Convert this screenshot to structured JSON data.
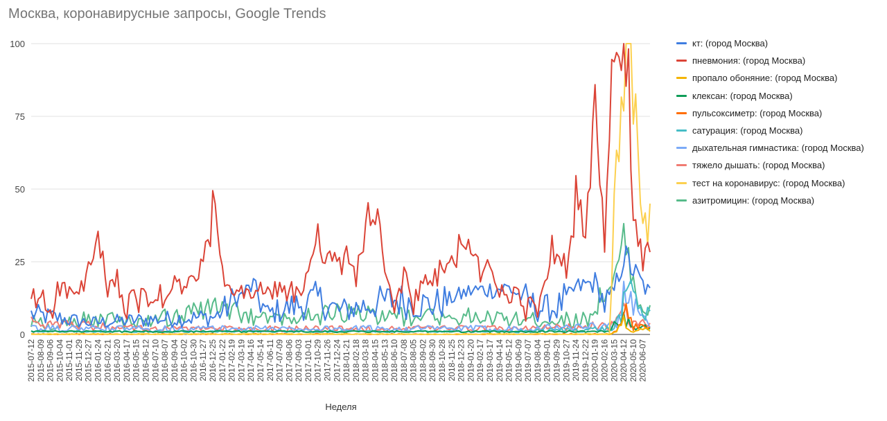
{
  "chart_data": {
    "type": "line",
    "title": "Москва, коронавирусные запросы, Google Trends",
    "xlabel": "Неделя",
    "ylabel": "",
    "ylim": [
      0,
      100
    ],
    "yticks": [
      0,
      25,
      50,
      75,
      100
    ],
    "grid": true,
    "legend_position": "right",
    "x_start": "2015-07-12",
    "x_end": "2020-06-28",
    "x_tick_labels": [
      "2015-07-12",
      "2015-08-09",
      "2015-09-06",
      "2015-10-04",
      "2015-11-01",
      "2015-11-29",
      "2015-12-27",
      "2016-01-24",
      "2016-02-21",
      "2016-03-20",
      "2016-04-17",
      "2016-05-15",
      "2016-06-12",
      "2016-07-10",
      "2016-08-07",
      "2016-09-04",
      "2016-10-02",
      "2016-10-30",
      "2016-11-27",
      "2016-12-25",
      "2017-01-22",
      "2017-02-19",
      "2017-03-19",
      "2017-04-16",
      "2017-05-14",
      "2017-06-11",
      "2017-07-09",
      "2017-08-06",
      "2017-09-03",
      "2017-10-01",
      "2017-10-29",
      "2017-11-26",
      "2017-12-24",
      "2018-01-21",
      "2018-02-18",
      "2018-03-18",
      "2018-04-15",
      "2018-05-13",
      "2018-06-10",
      "2018-07-08",
      "2018-08-05",
      "2018-09-02",
      "2018-09-30",
      "2018-10-28",
      "2018-11-25",
      "2018-12-23",
      "2019-01-20",
      "2019-02-17",
      "2019-03-17",
      "2019-04-14",
      "2019-05-12",
      "2019-06-09",
      "2019-07-07",
      "2019-08-04",
      "2019-09-01",
      "2019-09-29",
      "2019-10-27",
      "2019-11-24",
      "2019-12-22",
      "2020-01-19",
      "2020-02-16",
      "2020-03-15",
      "2020-04-12",
      "2020-05-10",
      "2020-06-07"
    ],
    "series": [
      {
        "name": "кт: (город Москва)",
        "color": "#3f7de0",
        "points": [
          [
            "2015-07-12",
            7
          ],
          [
            "2016-01-01",
            4
          ],
          [
            "2016-06-01",
            5
          ],
          [
            "2017-01-01",
            6
          ],
          [
            "2017-04-23",
            17
          ],
          [
            "2017-06-01",
            7
          ],
          [
            "2017-10-29",
            12
          ],
          [
            "2018-01-01",
            8
          ],
          [
            "2018-06-10",
            12
          ],
          [
            "2018-10-01",
            10
          ],
          [
            "2019-01-20",
            15
          ],
          [
            "2019-05-12",
            16
          ],
          [
            "2019-08-01",
            9
          ],
          [
            "2019-09-29",
            9
          ],
          [
            "2019-11-24",
            16
          ],
          [
            "2020-01-19",
            18
          ],
          [
            "2020-02-16",
            10
          ],
          [
            "2020-03-15",
            15
          ],
          [
            "2020-04-12",
            27
          ],
          [
            "2020-05-10",
            22
          ],
          [
            "2020-06-07",
            17
          ],
          [
            "2020-06-28",
            14
          ]
        ]
      },
      {
        "name": "пневмония: (город Москва)",
        "color": "#db4437",
        "points": [
          [
            "2015-07-12",
            10
          ],
          [
            "2015-08-09",
            13
          ],
          [
            "2015-09-06",
            9
          ],
          [
            "2015-10-04",
            17
          ],
          [
            "2015-11-01",
            14
          ],
          [
            "2015-11-29",
            14
          ],
          [
            "2015-12-27",
            21
          ],
          [
            "2016-01-24",
            33
          ],
          [
            "2016-02-21",
            14
          ],
          [
            "2016-03-20",
            19
          ],
          [
            "2016-04-17",
            8
          ],
          [
            "2016-05-15",
            12
          ],
          [
            "2016-06-12",
            11
          ],
          [
            "2016-07-10",
            13
          ],
          [
            "2016-08-07",
            10
          ],
          [
            "2016-09-04",
            18
          ],
          [
            "2016-10-02",
            15
          ],
          [
            "2016-10-30",
            20
          ],
          [
            "2016-11-27",
            22
          ],
          [
            "2016-12-25",
            44
          ],
          [
            "2017-01-22",
            20
          ],
          [
            "2017-02-19",
            14
          ],
          [
            "2017-03-19",
            14
          ],
          [
            "2017-04-16",
            14
          ],
          [
            "2017-05-14",
            16
          ],
          [
            "2017-06-11",
            13
          ],
          [
            "2017-07-09",
            17
          ],
          [
            "2017-08-06",
            12
          ],
          [
            "2017-09-03",
            12
          ],
          [
            "2017-10-01",
            23
          ],
          [
            "2017-10-29",
            35
          ],
          [
            "2017-11-26",
            28
          ],
          [
            "2017-12-24",
            22
          ],
          [
            "2018-01-21",
            26
          ],
          [
            "2018-02-18",
            21
          ],
          [
            "2018-03-18",
            36
          ],
          [
            "2018-04-15",
            44
          ],
          [
            "2018-05-13",
            20
          ],
          [
            "2018-06-10",
            10
          ],
          [
            "2018-07-08",
            20
          ],
          [
            "2018-08-05",
            12
          ],
          [
            "2018-09-02",
            17
          ],
          [
            "2018-09-30",
            18
          ],
          [
            "2018-10-28",
            22
          ],
          [
            "2018-11-25",
            24
          ],
          [
            "2018-12-23",
            34
          ],
          [
            "2019-01-20",
            27
          ],
          [
            "2019-02-17",
            22
          ],
          [
            "2019-03-17",
            22
          ],
          [
            "2019-04-14",
            16
          ],
          [
            "2019-05-12",
            13
          ],
          [
            "2019-06-09",
            10
          ],
          [
            "2019-07-07",
            10
          ],
          [
            "2019-08-04",
            10
          ],
          [
            "2019-09-01",
            22
          ],
          [
            "2019-09-29",
            34
          ],
          [
            "2019-10-27",
            24
          ],
          [
            "2019-11-24",
            47
          ],
          [
            "2019-12-22",
            34
          ],
          [
            "2020-01-19",
            71
          ],
          [
            "2020-02-16",
            30
          ],
          [
            "2020-03-15",
            100
          ],
          [
            "2020-03-29",
            82
          ],
          [
            "2020-04-12",
            96
          ],
          [
            "2020-04-26",
            82
          ],
          [
            "2020-05-10",
            50
          ],
          [
            "2020-05-24",
            30
          ],
          [
            "2020-06-07",
            24
          ],
          [
            "2020-06-28",
            27
          ]
        ]
      },
      {
        "name": "пропало обоняние: (город Москва)",
        "color": "#f4b400",
        "points": [
          [
            "2015-07-12",
            0
          ],
          [
            "2020-03-08",
            0
          ],
          [
            "2020-03-29",
            2
          ],
          [
            "2020-04-12",
            5
          ],
          [
            "2020-04-26",
            3
          ],
          [
            "2020-05-10",
            1
          ],
          [
            "2020-06-28",
            2
          ]
        ]
      },
      {
        "name": "клексан: (город Москва)",
        "color": "#0f9d58",
        "points": [
          [
            "2015-07-12",
            1
          ],
          [
            "2016-06-01",
            1
          ],
          [
            "2017-06-01",
            1
          ],
          [
            "2018-06-01",
            1
          ],
          [
            "2019-06-01",
            1
          ],
          [
            "2020-02-16",
            1
          ],
          [
            "2020-04-12",
            6
          ],
          [
            "2020-05-10",
            3
          ],
          [
            "2020-06-28",
            2
          ]
        ]
      },
      {
        "name": "пульсоксиметр: (город Москва)",
        "color": "#ff6d01",
        "points": [
          [
            "2015-07-12",
            0
          ],
          [
            "2020-03-08",
            0
          ],
          [
            "2020-04-05",
            3
          ],
          [
            "2020-04-19",
            7
          ],
          [
            "2020-05-10",
            3
          ],
          [
            "2020-06-28",
            2
          ]
        ]
      },
      {
        "name": "сатурация: (город Москва)",
        "color": "#46bdc6",
        "points": [
          [
            "2015-07-12",
            1
          ],
          [
            "2016-06-01",
            1
          ],
          [
            "2017-06-01",
            1
          ],
          [
            "2018-06-01",
            1
          ],
          [
            "2019-06-01",
            1
          ],
          [
            "2020-03-15",
            2
          ],
          [
            "2020-04-12",
            10
          ],
          [
            "2020-05-03",
            17
          ],
          [
            "2020-06-07",
            7
          ],
          [
            "2020-06-28",
            8
          ]
        ]
      },
      {
        "name": "дыхательная гимнастика: (город Москва)",
        "color": "#7baaf7",
        "points": [
          [
            "2015-07-12",
            2
          ],
          [
            "2016-06-01",
            2
          ],
          [
            "2017-06-01",
            2
          ],
          [
            "2018-06-01",
            2
          ],
          [
            "2019-06-01",
            2
          ],
          [
            "2020-03-15",
            3
          ],
          [
            "2020-04-12",
            12
          ],
          [
            "2020-05-03",
            10
          ],
          [
            "2020-06-07",
            5
          ],
          [
            "2020-06-28",
            4
          ]
        ]
      },
      {
        "name": "тяжело дышать: (город Москва)",
        "color": "#f07b72",
        "points": [
          [
            "2015-07-12",
            4
          ],
          [
            "2016-06-01",
            2
          ],
          [
            "2017-06-01",
            2
          ],
          [
            "2018-06-01",
            2
          ],
          [
            "2019-06-01",
            2
          ],
          [
            "2020-03-15",
            3
          ],
          [
            "2020-04-12",
            7
          ],
          [
            "2020-05-10",
            4
          ],
          [
            "2020-06-28",
            3
          ]
        ]
      },
      {
        "name": "тест на коронавирус: (город Москва)",
        "color": "#fcd04f",
        "points": [
          [
            "2015-07-12",
            0
          ],
          [
            "2020-03-01",
            0
          ],
          [
            "2020-03-15",
            45
          ],
          [
            "2020-03-22",
            72
          ],
          [
            "2020-03-29",
            68
          ],
          [
            "2020-04-12",
            88
          ],
          [
            "2020-04-26",
            85
          ],
          [
            "2020-05-03",
            100
          ],
          [
            "2020-05-10",
            72
          ],
          [
            "2020-05-17",
            85
          ],
          [
            "2020-05-24",
            57
          ],
          [
            "2020-06-07",
            45
          ],
          [
            "2020-06-28",
            37
          ]
        ]
      },
      {
        "name": "азитромицин: (город Москва)",
        "color": "#57bb8a",
        "points": [
          [
            "2015-07-12",
            5
          ],
          [
            "2015-09-06",
            3
          ],
          [
            "2016-01-01",
            6
          ],
          [
            "2016-06-01",
            4
          ],
          [
            "2016-12-25",
            9
          ],
          [
            "2017-06-01",
            5
          ],
          [
            "2017-12-24",
            7
          ],
          [
            "2018-06-01",
            6
          ],
          [
            "2018-12-23",
            6
          ],
          [
            "2019-06-01",
            5
          ],
          [
            "2019-12-22",
            5
          ],
          [
            "2020-03-15",
            18
          ],
          [
            "2020-04-12",
            32
          ],
          [
            "2020-04-26",
            26
          ],
          [
            "2020-05-24",
            12
          ],
          [
            "2020-06-28",
            9
          ]
        ]
      }
    ]
  }
}
